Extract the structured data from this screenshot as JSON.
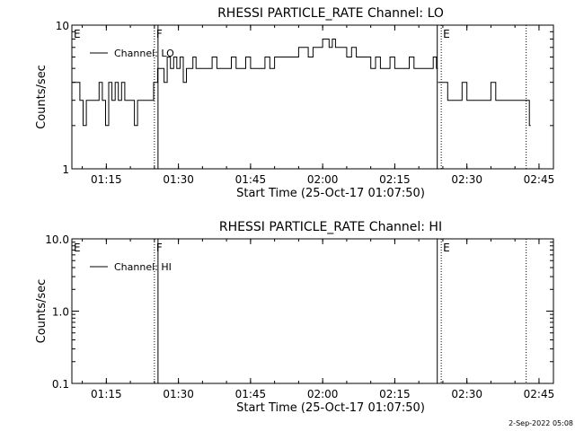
{
  "footer": {
    "timestamp": "2-Sep-2022 05:08"
  },
  "chart_data": [
    {
      "type": "line",
      "title": "RHESSI PARTICLE_RATE Channel: LO",
      "xlabel": "Start Time (25-Oct-17 01:07:50)",
      "ylabel": "Counts/sec",
      "yscale": "log",
      "ylim": [
        1,
        10
      ],
      "y_ticks": [
        "1",
        "10"
      ],
      "xlim": [
        "01:07:50",
        "02:48:00"
      ],
      "x_ticks": [
        "01:15",
        "01:30",
        "01:45",
        "02:00",
        "02:15",
        "02:30",
        "02:45"
      ],
      "grid": false,
      "legend": {
        "position": "top-left",
        "entries": [
          "Channel: LO"
        ]
      },
      "markers": [
        {
          "label": "E",
          "time": "01:07:50",
          "style": "none"
        },
        {
          "label": "F",
          "time": "01:25:00",
          "style": "dotted"
        },
        {
          "label": "",
          "time": "01:25:45",
          "style": "solid"
        },
        {
          "label": "",
          "time": "02:23:50",
          "style": "solid"
        },
        {
          "label": "E",
          "time": "02:24:40",
          "style": "dotted"
        },
        {
          "label": "",
          "time": "02:42:20",
          "style": "dotted"
        }
      ],
      "series": [
        {
          "name": "Channel: LO",
          "segments": [
            {
              "x": [
                "01:07:50",
                "01:08:50",
                "01:09:30",
                "01:10:10",
                "01:10:50",
                "01:11:30",
                "01:12:10",
                "01:12:50",
                "01:13:30",
                "01:14:10",
                "01:14:50",
                "01:15:30",
                "01:16:10",
                "01:16:50",
                "01:17:30",
                "01:18:10",
                "01:18:50",
                "01:19:30",
                "01:20:10",
                "01:20:50",
                "01:21:30",
                "01:22:10",
                "01:22:50",
                "01:23:30",
                "01:24:10",
                "01:24:50"
              ],
              "y": [
                4,
                4,
                3,
                2,
                3,
                3,
                3,
                3,
                4,
                3,
                2,
                4,
                3,
                4,
                3,
                4,
                3,
                3,
                3,
                2,
                3,
                3,
                3,
                3,
                3,
                4
              ]
            },
            {
              "x": [
                "01:25:00",
                "01:25:40",
                "01:26:20",
                "01:27:00",
                "01:27:40",
                "01:28:20",
                "01:29:00",
                "01:29:40",
                "01:30:20",
                "01:31:00",
                "01:31:40",
                "01:32:20",
                "01:33:00",
                "01:33:40",
                "01:34:20",
                "01:35:00",
                "01:36:00",
                "01:37:00",
                "01:38:00",
                "01:39:00",
                "01:40:00",
                "01:41:00",
                "01:42:00",
                "01:43:00",
                "01:44:00",
                "01:45:00",
                "01:46:00",
                "01:47:00",
                "01:48:00",
                "01:49:00",
                "01:50:00",
                "01:51:00",
                "01:52:00",
                "01:53:00",
                "01:54:00",
                "01:55:00",
                "01:56:00",
                "01:57:00",
                "01:58:00",
                "01:59:00",
                "02:00:00",
                "02:00:40",
                "02:01:20",
                "02:02:00",
                "02:02:40",
                "02:03:20",
                "02:04:00",
                "02:05:00",
                "02:06:00",
                "02:07:00",
                "02:08:00",
                "02:09:00",
                "02:10:00",
                "02:11:00",
                "02:12:00",
                "02:13:00",
                "02:14:00",
                "02:15:00",
                "02:16:00",
                "02:17:00",
                "02:18:00",
                "02:19:00",
                "02:20:00",
                "02:21:00",
                "02:22:00",
                "02:23:00",
                "02:23:40"
              ],
              "y": [
                4,
                5,
                5,
                4,
                6,
                5,
                6,
                5,
                6,
                4,
                5,
                5,
                6,
                5,
                5,
                5,
                5,
                6,
                5,
                5,
                5,
                6,
                5,
                5,
                6,
                5,
                5,
                5,
                6,
                5,
                6,
                6,
                6,
                6,
                6,
                7,
                7,
                6,
                7,
                7,
                8,
                8,
                7,
                8,
                7,
                7,
                7,
                6,
                7,
                6,
                6,
                6,
                5,
                6,
                5,
                5,
                6,
                5,
                5,
                5,
                6,
                5,
                5,
                5,
                5,
                6,
                5
              ]
            },
            {
              "x": [
                "02:24:00",
                "02:25:00",
                "02:26:00",
                "02:27:00",
                "02:28:00",
                "02:29:00",
                "02:30:00",
                "02:31:00",
                "02:32:00",
                "02:33:00",
                "02:34:00",
                "02:35:00",
                "02:36:00",
                "02:37:00",
                "02:38:00",
                "02:39:00",
                "02:40:00",
                "02:41:00",
                "02:42:00",
                "02:43:00"
              ],
              "y": [
                4,
                4,
                3,
                3,
                3,
                4,
                3,
                3,
                3,
                3,
                3,
                4,
                3,
                3,
                3,
                3,
                3,
                3,
                3,
                2
              ]
            }
          ]
        }
      ]
    },
    {
      "type": "line",
      "title": "RHESSI PARTICLE_RATE Channel: HI",
      "xlabel": "Start Time (25-Oct-17 01:07:50)",
      "ylabel": "Counts/sec",
      "yscale": "log",
      "ylim": [
        0.1,
        10.0
      ],
      "y_ticks": [
        "0.1",
        "1.0",
        "10.0"
      ],
      "xlim": [
        "01:07:50",
        "02:48:00"
      ],
      "x_ticks": [
        "01:15",
        "01:30",
        "01:45",
        "02:00",
        "02:15",
        "02:30",
        "02:45"
      ],
      "grid": false,
      "legend": {
        "position": "top-left",
        "entries": [
          "Channel: HI"
        ]
      },
      "markers": [
        {
          "label": "E",
          "time": "01:07:50",
          "style": "none"
        },
        {
          "label": "F",
          "time": "01:25:00",
          "style": "dotted"
        },
        {
          "label": "",
          "time": "01:25:45",
          "style": "solid"
        },
        {
          "label": "",
          "time": "02:23:50",
          "style": "solid"
        },
        {
          "label": "E",
          "time": "02:24:40",
          "style": "dotted"
        },
        {
          "label": "",
          "time": "02:42:20",
          "style": "dotted"
        }
      ],
      "series": [
        {
          "name": "Channel: HI",
          "segments": []
        }
      ]
    }
  ]
}
